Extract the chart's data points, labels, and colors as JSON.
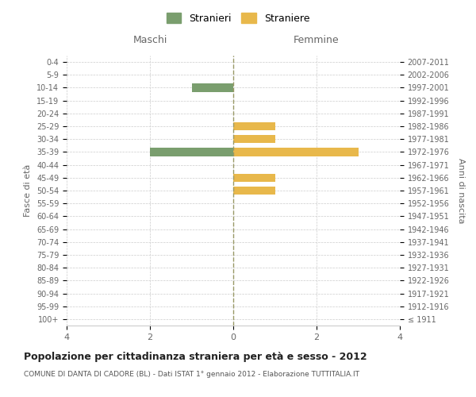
{
  "age_groups": [
    "100+",
    "95-99",
    "90-94",
    "85-89",
    "80-84",
    "75-79",
    "70-74",
    "65-69",
    "60-64",
    "55-59",
    "50-54",
    "45-49",
    "40-44",
    "35-39",
    "30-34",
    "25-29",
    "20-24",
    "15-19",
    "10-14",
    "5-9",
    "0-4"
  ],
  "birth_years": [
    "≤ 1911",
    "1912-1916",
    "1917-1921",
    "1922-1926",
    "1927-1931",
    "1932-1936",
    "1937-1941",
    "1942-1946",
    "1947-1951",
    "1952-1956",
    "1957-1961",
    "1962-1966",
    "1967-1971",
    "1972-1976",
    "1977-1981",
    "1982-1986",
    "1987-1991",
    "1992-1996",
    "1997-2001",
    "2002-2006",
    "2007-2011"
  ],
  "males": [
    0,
    0,
    0,
    0,
    0,
    0,
    0,
    0,
    0,
    0,
    0,
    0,
    0,
    2,
    0,
    0,
    0,
    0,
    1,
    0,
    0
  ],
  "females": [
    0,
    0,
    0,
    0,
    0,
    0,
    0,
    0,
    0,
    0,
    1,
    1,
    0,
    3,
    1,
    1,
    0,
    0,
    0,
    0,
    0
  ],
  "male_color": "#7a9e6e",
  "female_color": "#e8b84b",
  "xlim": 4,
  "title": "Popolazione per cittadinanza straniera per età e sesso - 2012",
  "subtitle": "COMUNE DI DANTA DI CADORE (BL) - Dati ISTAT 1° gennaio 2012 - Elaborazione TUTTITALIA.IT",
  "left_label": "Maschi",
  "right_label": "Femmine",
  "ylabel": "Fasce di età",
  "right_ylabel": "Anni di nascita",
  "legend_male": "Stranieri",
  "legend_female": "Straniere",
  "bg_color": "#ffffff",
  "grid_color": "#cccccc",
  "axis_line_color": "#999966"
}
